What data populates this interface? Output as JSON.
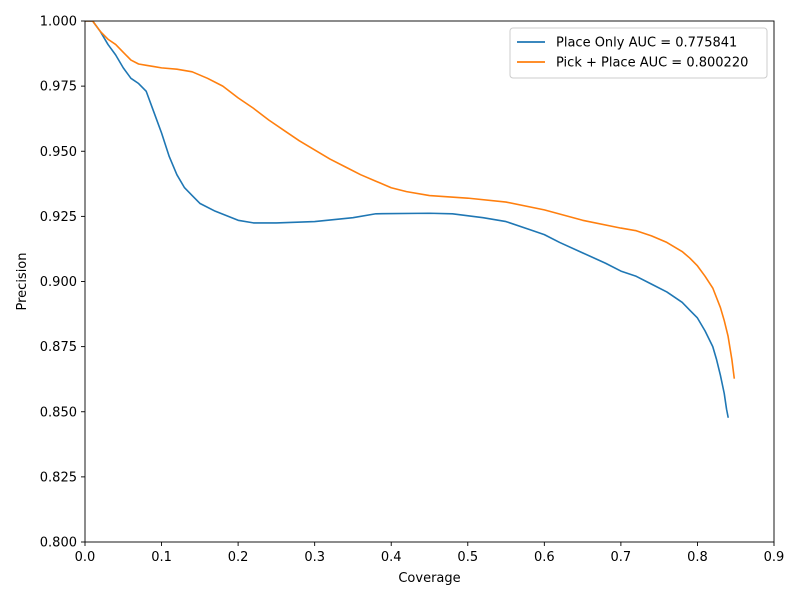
{
  "chart_data": {
    "type": "line",
    "xlabel": "Coverage",
    "ylabel": "Precision",
    "xlim": [
      0.0,
      0.9
    ],
    "ylim": [
      0.8,
      1.0
    ],
    "x_ticks": [
      0.0,
      0.1,
      0.2,
      0.3,
      0.4,
      0.5,
      0.6,
      0.7,
      0.8,
      0.9
    ],
    "x_tick_labels": [
      "0.0",
      "0.1",
      "0.2",
      "0.3",
      "0.4",
      "0.5",
      "0.6",
      "0.7",
      "0.8",
      "0.9"
    ],
    "y_ticks": [
      0.8,
      0.825,
      0.85,
      0.875,
      0.9,
      0.925,
      0.95,
      0.975,
      1.0
    ],
    "y_tick_labels": [
      "0.800",
      "0.825",
      "0.850",
      "0.875",
      "0.900",
      "0.925",
      "0.950",
      "0.975",
      "1.000"
    ],
    "grid": false,
    "legend_position": "top-right",
    "series": [
      {
        "name": "Place Only AUC = 0.775841",
        "color": "#1f77b4",
        "points": [
          [
            0.0,
            1.0
          ],
          [
            0.01,
            1.0
          ],
          [
            0.02,
            0.996
          ],
          [
            0.03,
            0.991
          ],
          [
            0.04,
            0.987
          ],
          [
            0.05,
            0.982
          ],
          [
            0.06,
            0.978
          ],
          [
            0.07,
            0.976
          ],
          [
            0.08,
            0.973
          ],
          [
            0.09,
            0.965
          ],
          [
            0.1,
            0.957
          ],
          [
            0.11,
            0.948
          ],
          [
            0.12,
            0.941
          ],
          [
            0.13,
            0.936
          ],
          [
            0.14,
            0.933
          ],
          [
            0.15,
            0.93
          ],
          [
            0.17,
            0.927
          ],
          [
            0.2,
            0.9235
          ],
          [
            0.22,
            0.9225
          ],
          [
            0.25,
            0.9225
          ],
          [
            0.3,
            0.923
          ],
          [
            0.35,
            0.9245
          ],
          [
            0.38,
            0.926
          ],
          [
            0.45,
            0.9262
          ],
          [
            0.48,
            0.926
          ],
          [
            0.52,
            0.9245
          ],
          [
            0.55,
            0.923
          ],
          [
            0.58,
            0.92
          ],
          [
            0.6,
            0.918
          ],
          [
            0.62,
            0.915
          ],
          [
            0.65,
            0.911
          ],
          [
            0.68,
            0.907
          ],
          [
            0.7,
            0.904
          ],
          [
            0.72,
            0.902
          ],
          [
            0.74,
            0.899
          ],
          [
            0.76,
            0.896
          ],
          [
            0.78,
            0.892
          ],
          [
            0.79,
            0.889
          ],
          [
            0.8,
            0.886
          ],
          [
            0.81,
            0.881
          ],
          [
            0.82,
            0.875
          ],
          [
            0.825,
            0.87
          ],
          [
            0.83,
            0.864
          ],
          [
            0.835,
            0.857
          ],
          [
            0.838,
            0.851
          ],
          [
            0.84,
            0.848
          ]
        ]
      },
      {
        "name": "Pick + Place AUC = 0.800220",
        "color": "#ff7f0e",
        "points": [
          [
            0.0,
            1.0
          ],
          [
            0.01,
            1.0
          ],
          [
            0.02,
            0.996
          ],
          [
            0.03,
            0.993
          ],
          [
            0.04,
            0.991
          ],
          [
            0.05,
            0.988
          ],
          [
            0.06,
            0.985
          ],
          [
            0.07,
            0.9835
          ],
          [
            0.08,
            0.983
          ],
          [
            0.09,
            0.9825
          ],
          [
            0.1,
            0.982
          ],
          [
            0.12,
            0.9815
          ],
          [
            0.14,
            0.9805
          ],
          [
            0.16,
            0.978
          ],
          [
            0.18,
            0.975
          ],
          [
            0.2,
            0.9705
          ],
          [
            0.22,
            0.9665
          ],
          [
            0.24,
            0.962
          ],
          [
            0.26,
            0.958
          ],
          [
            0.28,
            0.954
          ],
          [
            0.3,
            0.9505
          ],
          [
            0.32,
            0.947
          ],
          [
            0.34,
            0.944
          ],
          [
            0.36,
            0.941
          ],
          [
            0.38,
            0.9385
          ],
          [
            0.4,
            0.936
          ],
          [
            0.42,
            0.9345
          ],
          [
            0.45,
            0.933
          ],
          [
            0.5,
            0.932
          ],
          [
            0.55,
            0.9305
          ],
          [
            0.6,
            0.9275
          ],
          [
            0.65,
            0.9235
          ],
          [
            0.7,
            0.9205
          ],
          [
            0.72,
            0.9195
          ],
          [
            0.74,
            0.9175
          ],
          [
            0.76,
            0.915
          ],
          [
            0.78,
            0.9115
          ],
          [
            0.79,
            0.909
          ],
          [
            0.8,
            0.906
          ],
          [
            0.81,
            0.902
          ],
          [
            0.82,
            0.8975
          ],
          [
            0.83,
            0.89
          ],
          [
            0.835,
            0.885
          ],
          [
            0.84,
            0.879
          ],
          [
            0.845,
            0.87
          ],
          [
            0.848,
            0.863
          ]
        ]
      }
    ]
  }
}
